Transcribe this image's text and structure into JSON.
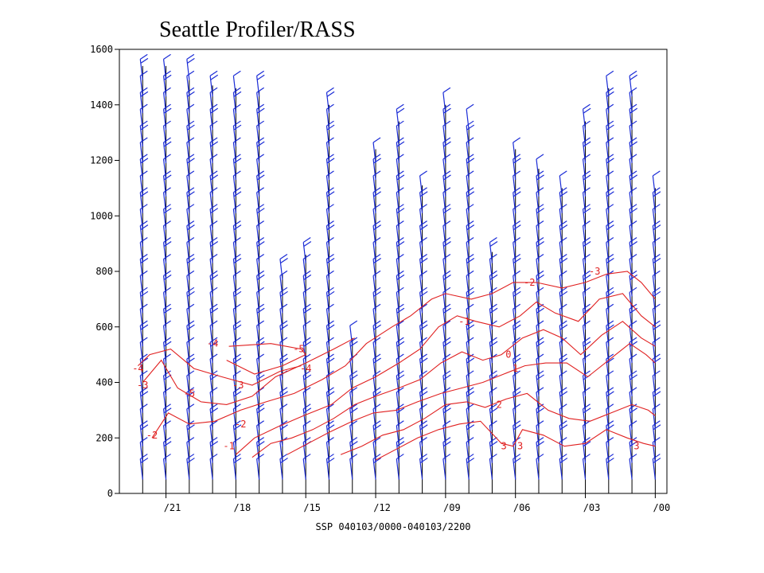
{
  "title": "Seattle Profiler/RASS",
  "colors": {
    "wind_barb": "#1a2bd6",
    "isotherm": "#e02020",
    "profile_line": "#000000",
    "axis": "#000000"
  },
  "chart_data": {
    "type": "line",
    "title": "Seattle Profiler/RASS",
    "xlabel": "SSP 040103/0000-040103/2200",
    "ylabel": "",
    "ylim": [
      0,
      1600
    ],
    "y_ticks": [
      "0",
      "200",
      "400",
      "600",
      "800",
      "1000",
      "1200",
      "1400",
      "1600"
    ],
    "x_ticks": [
      "/21",
      "/18",
      "/15",
      "/12",
      "/09",
      "/06",
      "/03",
      "/00"
    ],
    "x_tick_hours": [
      21,
      18,
      15,
      12,
      9,
      6,
      3,
      0
    ],
    "xlim_hours": [
      23,
      -0.5
    ],
    "grid": false,
    "wind_profiles": [
      {
        "hour": 22,
        "top": 1540
      },
      {
        "hour": 21,
        "top": 1540
      },
      {
        "hour": 20,
        "top": 1490
      },
      {
        "hour": 19,
        "top": 1470
      },
      {
        "hour": 18,
        "top": 1460
      },
      {
        "hour": 17,
        "top": 1450
      },
      {
        "hour": 16,
        "top": 790
      },
      {
        "hour": 15,
        "top": 860
      },
      {
        "hour": 14,
        "top": 1400
      },
      {
        "hour": 13,
        "top": 560
      },
      {
        "hour": 12,
        "top": 1240
      },
      {
        "hour": 11,
        "top": 1340
      },
      {
        "hour": 10,
        "top": 1110
      },
      {
        "hour": 9,
        "top": 1400
      },
      {
        "hour": 8,
        "top": 1320
      },
      {
        "hour": 7,
        "top": 870
      },
      {
        "hour": 6,
        "top": 1240
      },
      {
        "hour": 5,
        "top": 1170
      },
      {
        "hour": 4,
        "top": 1100
      },
      {
        "hour": 3,
        "top": 1340
      },
      {
        "hour": 2,
        "top": 1460
      },
      {
        "hour": 1,
        "top": 1450
      },
      {
        "hour": 0,
        "top": 1100
      }
    ],
    "isotherms": [
      {
        "label": "-5",
        "points": [
          [
            18.3,
            530
          ],
          [
            16.5,
            540
          ],
          [
            15.2,
            520
          ],
          [
            15.0,
            500
          ],
          [
            16.0,
            460
          ],
          [
            17.2,
            430
          ],
          [
            18.4,
            480
          ]
        ]
      },
      {
        "label": "-4",
        "points": [
          [
            22.2,
            460
          ],
          [
            21.7,
            500
          ],
          [
            20.8,
            520
          ],
          [
            19.8,
            450
          ],
          [
            18.6,
            420
          ],
          [
            17.3,
            390
          ],
          [
            16.1,
            440
          ],
          [
            15.2,
            460
          ]
        ]
      },
      {
        "label": "-3",
        "points": [
          [
            22.0,
            400
          ],
          [
            21.2,
            480
          ],
          [
            20.5,
            380
          ],
          [
            19.5,
            330
          ],
          [
            18.4,
            320
          ],
          [
            17.3,
            350
          ],
          [
            16.3,
            420
          ],
          [
            15.0,
            470
          ],
          [
            13.8,
            520
          ],
          [
            12.9,
            560
          ]
        ]
      },
      {
        "label": "-2",
        "points": [
          [
            21.6,
            200
          ],
          [
            20.9,
            290
          ],
          [
            20.0,
            250
          ],
          [
            18.9,
            260
          ],
          [
            17.8,
            300
          ],
          [
            16.7,
            330
          ],
          [
            15.5,
            360
          ],
          [
            14.3,
            410
          ],
          [
            13.3,
            460
          ],
          [
            12.4,
            540
          ],
          [
            11.3,
            600
          ],
          [
            10.5,
            640
          ],
          [
            9.6,
            700
          ],
          [
            9.0,
            720
          ],
          [
            7.9,
            700
          ],
          [
            7.0,
            720
          ],
          [
            6.1,
            760
          ],
          [
            5.1,
            760
          ],
          [
            4.0,
            740
          ],
          [
            3.0,
            760
          ],
          [
            2.1,
            790
          ],
          [
            1.2,
            800
          ],
          [
            0.6,
            760
          ],
          [
            0.0,
            700
          ]
        ]
      },
      {
        "label": "-1",
        "points": [
          [
            18.0,
            140
          ],
          [
            17.2,
            200
          ],
          [
            16.2,
            240
          ],
          [
            15.1,
            280
          ],
          [
            13.9,
            320
          ],
          [
            13.0,
            380
          ],
          [
            12.0,
            420
          ],
          [
            11.0,
            470
          ],
          [
            10.1,
            520
          ],
          [
            9.3,
            600
          ],
          [
            8.5,
            640
          ],
          [
            7.7,
            620
          ],
          [
            6.7,
            600
          ],
          [
            5.8,
            640
          ],
          [
            5.1,
            690
          ],
          [
            4.3,
            650
          ],
          [
            3.3,
            620
          ],
          [
            2.4,
            700
          ],
          [
            1.4,
            720
          ],
          [
            0.6,
            640
          ],
          [
            0.0,
            600
          ]
        ]
      },
      {
        "label": "0",
        "points": [
          [
            17.3,
            130
          ],
          [
            16.5,
            180
          ],
          [
            15.6,
            200
          ],
          [
            14.7,
            230
          ],
          [
            13.8,
            270
          ],
          [
            12.9,
            320
          ],
          [
            12.0,
            350
          ],
          [
            11.0,
            380
          ],
          [
            10.1,
            410
          ],
          [
            9.2,
            470
          ],
          [
            8.3,
            510
          ],
          [
            7.4,
            480
          ],
          [
            6.6,
            500
          ],
          [
            5.7,
            560
          ],
          [
            4.8,
            590
          ],
          [
            4.0,
            560
          ],
          [
            3.2,
            500
          ],
          [
            2.3,
            570
          ],
          [
            1.4,
            620
          ],
          [
            0.6,
            560
          ],
          [
            0.0,
            530
          ]
        ]
      },
      {
        "label": "1",
        "points": [
          [
            15.8,
            140
          ],
          [
            14.9,
            180
          ],
          [
            14.0,
            220
          ],
          [
            13.0,
            260
          ],
          [
            12.1,
            290
          ],
          [
            11.1,
            300
          ],
          [
            10.2,
            330
          ],
          [
            9.2,
            360
          ],
          [
            8.3,
            380
          ],
          [
            7.4,
            400
          ],
          [
            6.5,
            430
          ],
          [
            5.6,
            460
          ],
          [
            4.7,
            470
          ],
          [
            3.8,
            470
          ],
          [
            2.9,
            420
          ],
          [
            2.0,
            480
          ],
          [
            1.1,
            540
          ],
          [
            0.4,
            500
          ],
          [
            0.0,
            470
          ]
        ]
      },
      {
        "label": "2",
        "points": [
          [
            13.5,
            140
          ],
          [
            12.6,
            170
          ],
          [
            11.7,
            210
          ],
          [
            10.8,
            230
          ],
          [
            9.9,
            270
          ],
          [
            9.0,
            320
          ],
          [
            8.1,
            330
          ],
          [
            7.3,
            310
          ],
          [
            6.4,
            340
          ],
          [
            5.5,
            360
          ],
          [
            4.6,
            300
          ],
          [
            3.7,
            270
          ],
          [
            2.8,
            260
          ],
          [
            1.9,
            290
          ],
          [
            1.0,
            320
          ],
          [
            0.3,
            300
          ],
          [
            0.0,
            280
          ]
        ]
      },
      {
        "label": "3",
        "points": [
          [
            12.0,
            120
          ],
          [
            11.1,
            160
          ],
          [
            10.2,
            200
          ],
          [
            9.3,
            230
          ],
          [
            8.4,
            250
          ],
          [
            7.5,
            260
          ],
          [
            6.6,
            180
          ],
          [
            6.1,
            170
          ],
          [
            5.7,
            230
          ],
          [
            4.8,
            210
          ],
          [
            3.9,
            170
          ],
          [
            3.0,
            180
          ],
          [
            2.1,
            230
          ],
          [
            1.2,
            200
          ],
          [
            0.5,
            180
          ],
          [
            0.0,
            170
          ]
        ]
      }
    ],
    "isotherm_labels": [
      {
        "text": "-5",
        "hour": 15.3,
        "alt": 520
      },
      {
        "text": "-4",
        "hour": 22.2,
        "alt": 450
      },
      {
        "text": "-3",
        "hour": 22.0,
        "alt": 390
      },
      {
        "text": "-5",
        "hour": 20.0,
        "alt": 360
      },
      {
        "text": "-4",
        "hour": 19.0,
        "alt": 540
      },
      {
        "text": "-3",
        "hour": 17.9,
        "alt": 390
      },
      {
        "text": "-4",
        "hour": 15.0,
        "alt": 450
      },
      {
        "text": "-2",
        "hour": 21.6,
        "alt": 210
      },
      {
        "text": "-1",
        "hour": 18.3,
        "alt": 170
      },
      {
        "text": "-2",
        "hour": 17.8,
        "alt": 250
      },
      {
        "text": "-1",
        "hour": 8.2,
        "alt": 620
      },
      {
        "text": "-2",
        "hour": 5.4,
        "alt": 760
      },
      {
        "text": "-3",
        "hour": 2.6,
        "alt": 800
      },
      {
        "text": "0",
        "hour": 6.3,
        "alt": 500
      },
      {
        "text": "1",
        "hour": 6.0,
        "alt": 450
      },
      {
        "text": "2",
        "hour": 6.7,
        "alt": 320
      },
      {
        "text": "3",
        "hour": 6.5,
        "alt": 170
      },
      {
        "text": "3",
        "hour": 5.8,
        "alt": 170
      },
      {
        "text": "3",
        "hour": 0.8,
        "alt": 170
      }
    ]
  }
}
